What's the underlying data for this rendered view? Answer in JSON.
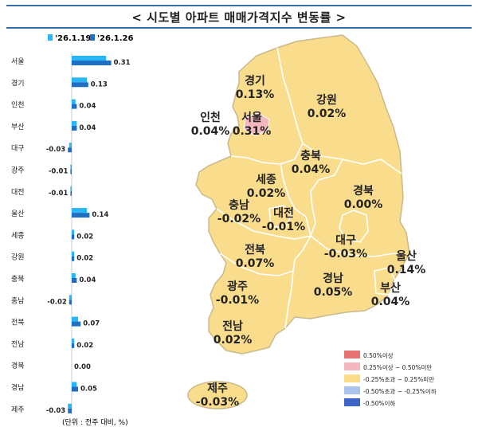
{
  "title": "< 시도별 아파트 매매가격지수 변동률 >",
  "unit_note": "(단위 : 전주 대비, %)",
  "colors": {
    "series1": "#29b6f6",
    "series2": "#1e6fc4",
    "map_fill": "#fadd8c",
    "map_stroke": "#c9b98a",
    "seoul_fill": "#f4b7bf",
    "title_line": "#3b6fb3"
  },
  "chart_data": {
    "type": "bar",
    "orientation": "horizontal",
    "categories": [
      "서울",
      "경기",
      "인천",
      "부산",
      "대구",
      "광주",
      "대전",
      "울산",
      "세종",
      "강원",
      "충북",
      "충남",
      "전북",
      "전남",
      "경북",
      "경남",
      "제주"
    ],
    "series": [
      {
        "name": "'26.1.19",
        "values": [
          0.27,
          0.12,
          0.03,
          0.04,
          -0.02,
          -0.01,
          -0.01,
          0.12,
          0.02,
          0.02,
          0.03,
          -0.02,
          0.05,
          0.02,
          0.0,
          0.04,
          -0.03
        ]
      },
      {
        "name": "'26.1.26",
        "values": [
          0.31,
          0.13,
          0.04,
          0.04,
          -0.03,
          -0.01,
          -0.01,
          0.14,
          0.02,
          0.02,
          0.04,
          -0.02,
          0.07,
          0.02,
          0.0,
          0.05,
          -0.03
        ]
      }
    ],
    "value_labels": [
      "0.31",
      "0.13",
      "0.04",
      "0.04",
      "-0.03",
      "-0.01",
      "-0.01",
      "0.14",
      "0.02",
      "0.02",
      "0.04",
      "-0.02",
      "0.07",
      "0.02",
      "0.00",
      "0.05",
      "-0.03"
    ],
    "legend": [
      "'26.1.19",
      "'26.1.26"
    ]
  },
  "map": {
    "regions": [
      {
        "name": "경기",
        "value": "0.13%"
      },
      {
        "name": "강원",
        "value": "0.02%"
      },
      {
        "name": "인천",
        "value": "0.04%"
      },
      {
        "name": "서울",
        "value": "0.31%"
      },
      {
        "name": "충북",
        "value": "0.04%"
      },
      {
        "name": "세종",
        "value": "0.02%"
      },
      {
        "name": "경북",
        "value": "0.00%"
      },
      {
        "name": "충남",
        "value": "-0.02%"
      },
      {
        "name": "대전",
        "value": "-0.01%"
      },
      {
        "name": "전북",
        "value": "0.07%"
      },
      {
        "name": "대구",
        "value": "-0.03%"
      },
      {
        "name": "울산",
        "value": "0.14%"
      },
      {
        "name": "광주",
        "value": "-0.01%"
      },
      {
        "name": "경남",
        "value": "0.05%"
      },
      {
        "name": "부산",
        "value": "0.04%"
      },
      {
        "name": "전남",
        "value": "0.02%"
      },
      {
        "name": "제주",
        "value": "-0.03%"
      }
    ],
    "legend": [
      {
        "label": "0.50%이상",
        "color": "#e57373"
      },
      {
        "label": "0.25%이상 ~ 0.50%미만",
        "color": "#f4b7bf"
      },
      {
        "label": "-0.25%초과 ~ 0.25%미만",
        "color": "#fadd8c"
      },
      {
        "label": "-0.50%초과 ~ -0.25%이하",
        "color": "#aac4ec"
      },
      {
        "label": "-0.50%이하",
        "color": "#3f64c7"
      }
    ]
  }
}
